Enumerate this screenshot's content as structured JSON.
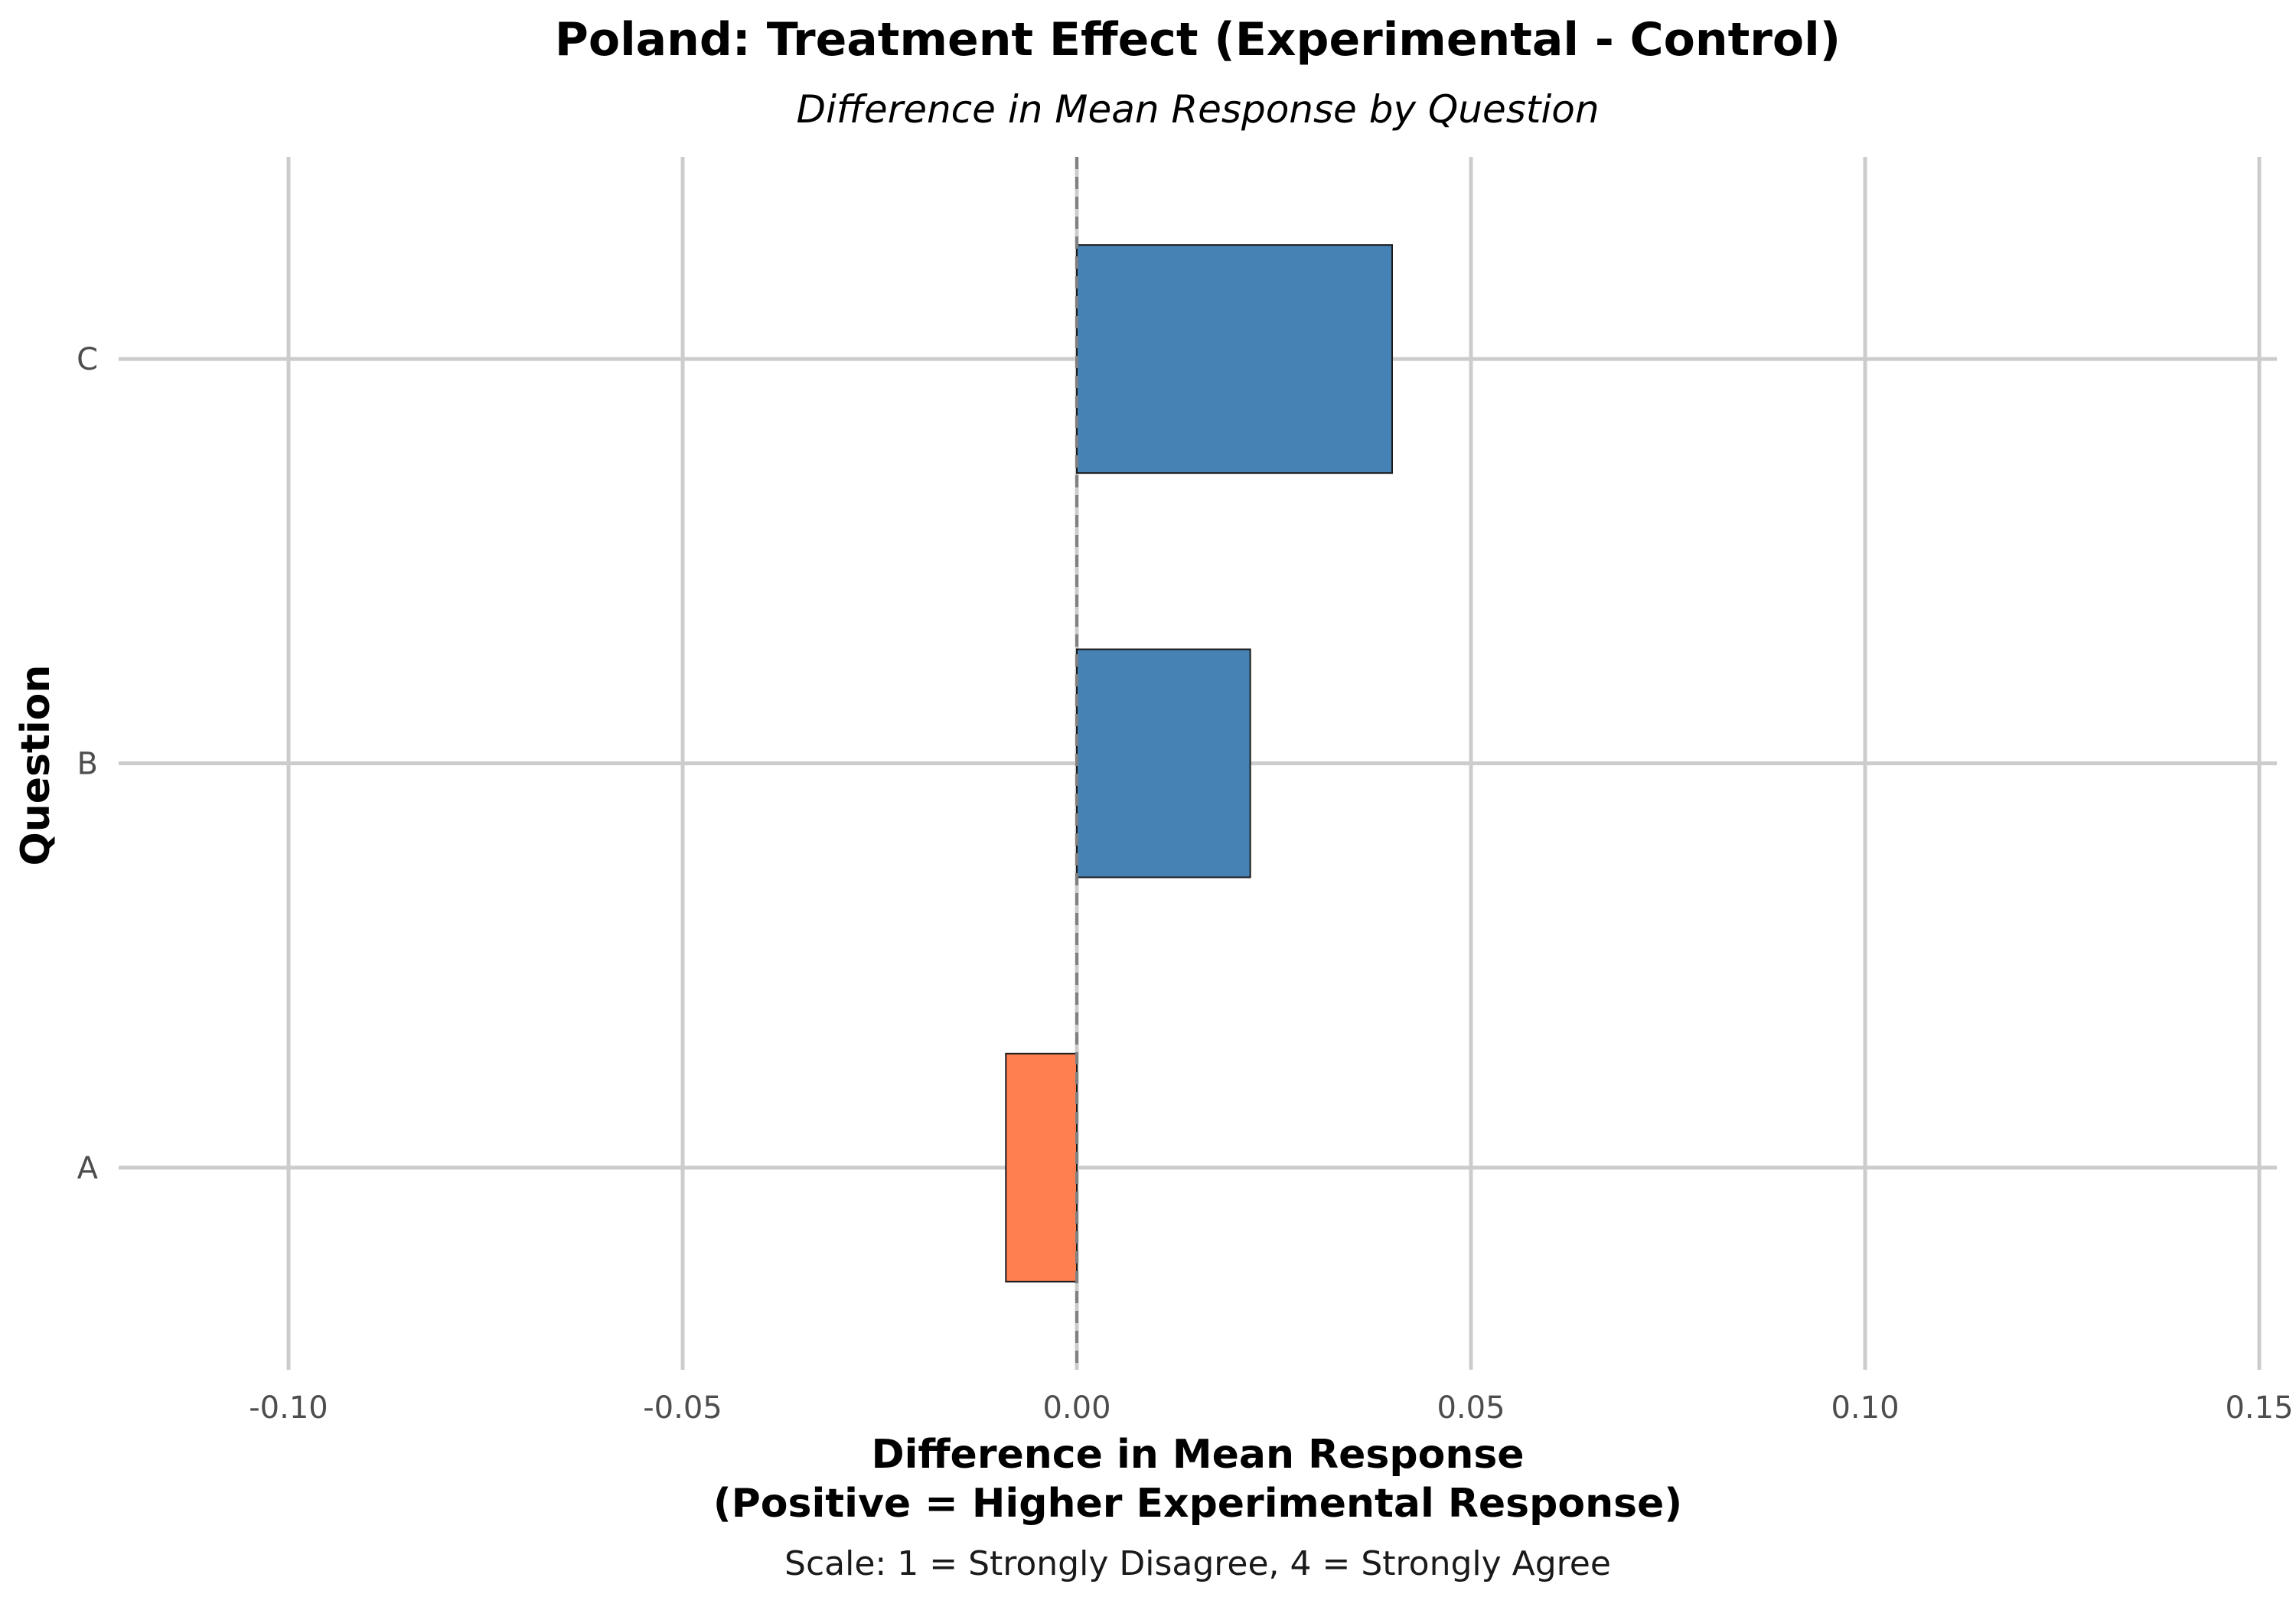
{
  "chart_data": {
    "type": "bar",
    "orientation": "horizontal",
    "title": "Poland: Treatment Effect (Experimental - Control)",
    "subtitle": "Difference in Mean Response by Question",
    "xlabel_line1": "Difference in Mean Response",
    "xlabel_line2": "(Positive = Higher Experimental Response)",
    "ylabel": "Question",
    "caption": "Scale: 1 = Strongly Disagree, 4 = Strongly Agree",
    "categories": [
      "A",
      "B",
      "C"
    ],
    "values": [
      -0.009,
      0.022,
      0.04
    ],
    "xlim": [
      -0.1,
      0.15
    ],
    "xticks": [
      -0.1,
      -0.05,
      0.0,
      0.05,
      0.1,
      0.15
    ],
    "xtick_labels": [
      "-0.10",
      "-0.05",
      "0.00",
      "0.05",
      "0.10",
      "0.15"
    ],
    "reference_line": 0,
    "grid": true,
    "legend": "none",
    "colors": {
      "positive": "#4682B4",
      "negative": "#FF7F50"
    }
  }
}
